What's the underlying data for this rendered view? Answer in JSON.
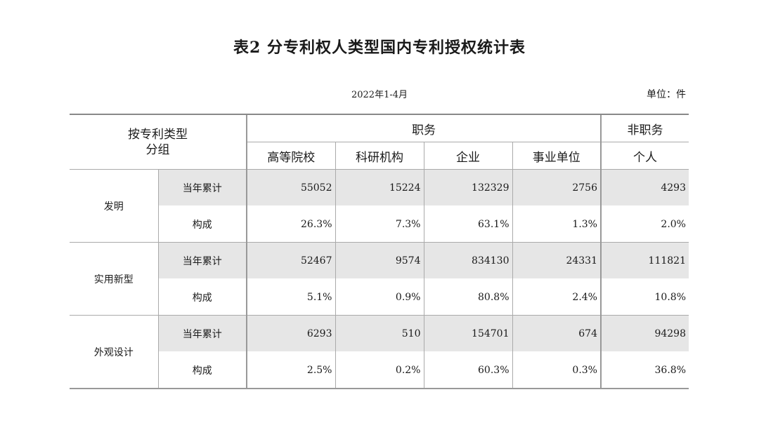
{
  "title": "表2  分专利权人类型国内专利授权统计表",
  "period": "2022年1-4月",
  "unit": "单位：件",
  "table": {
    "group_header": "按专利类型\n分组",
    "group_header_line1": "按专利类型",
    "group_header_line2": "分组",
    "service_header": "职务",
    "nonservice_header": "非职务",
    "columns": [
      "高等院校",
      "科研机构",
      "企业",
      "事业单位",
      "个人"
    ],
    "groups": [
      {
        "type": "发明",
        "rows": [
          {
            "indicator": "当年累计",
            "values": [
              "55052",
              "15224",
              "132329",
              "2756",
              "4293"
            ]
          },
          {
            "indicator": "构成",
            "values": [
              "26.3%",
              "7.3%",
              "63.1%",
              "1.3%",
              "2.0%"
            ]
          }
        ]
      },
      {
        "type": "实用新型",
        "rows": [
          {
            "indicator": "当年累计",
            "values": [
              "52467",
              "9574",
              "834130",
              "24331",
              "111821"
            ]
          },
          {
            "indicator": "构成",
            "values": [
              "5.1%",
              "0.9%",
              "80.8%",
              "2.4%",
              "10.8%"
            ]
          }
        ]
      },
      {
        "type": "外观设计",
        "rows": [
          {
            "indicator": "当年累计",
            "values": [
              "6293",
              "510",
              "154701",
              "674",
              "94298"
            ]
          },
          {
            "indicator": "构成",
            "values": [
              "2.5%",
              "0.2%",
              "60.3%",
              "0.3%",
              "36.8%"
            ]
          }
        ]
      }
    ]
  }
}
